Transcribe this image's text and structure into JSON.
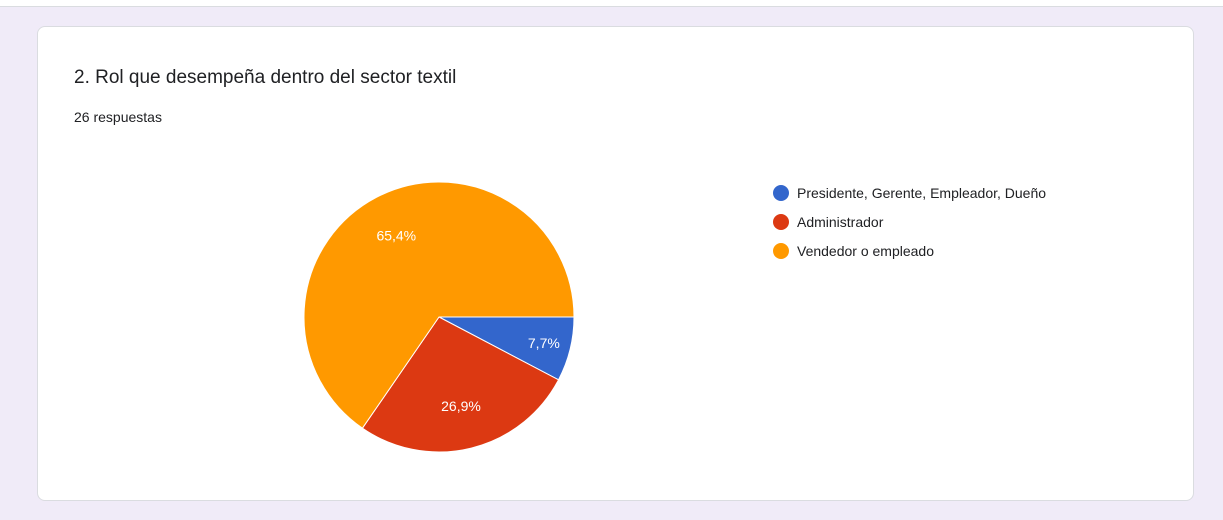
{
  "question": {
    "title": "2. Rol que desempeña dentro del sector textil",
    "responses": "26 respuestas"
  },
  "chart_data": {
    "type": "pie",
    "categories": [
      "Presidente, Gerente, Empleador, Dueño",
      "Administrador",
      "Vendedor o empleado"
    ],
    "values": [
      7.7,
      26.9,
      65.4
    ],
    "slice_labels": [
      "7,7%",
      "26,9%",
      "65,4%"
    ],
    "colors": [
      "#3366cc",
      "#dc3912",
      "#ff9900"
    ],
    "legend_position": "right"
  }
}
